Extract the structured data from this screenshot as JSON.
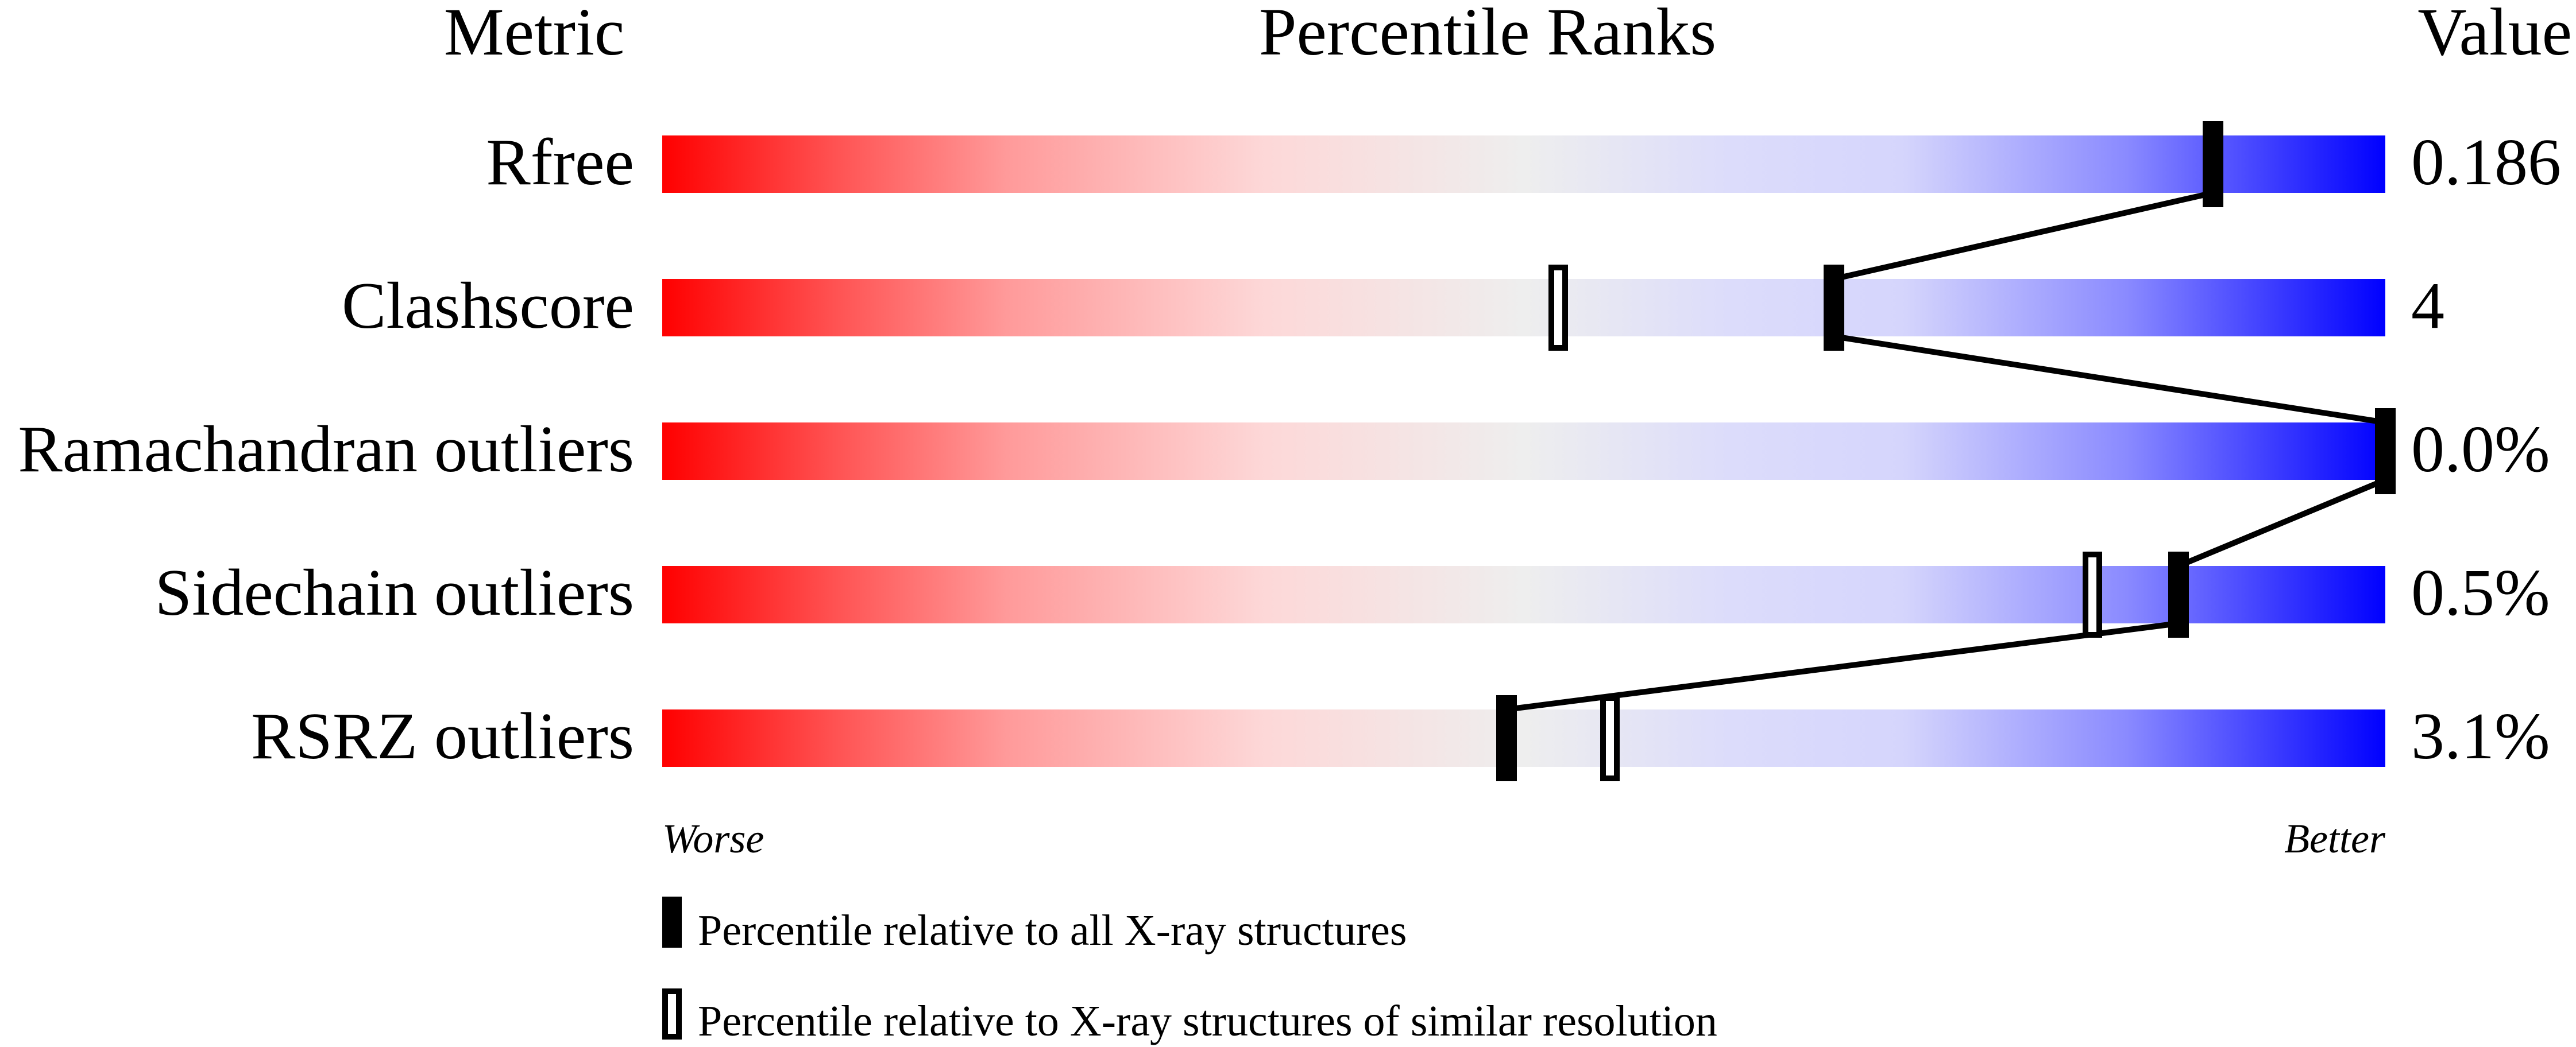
{
  "chart_data": {
    "type": "percentile-slider",
    "headers": {
      "metric": "Metric",
      "ranks": "Percentile Ranks",
      "value": "Value"
    },
    "axis": {
      "left_label": "Worse",
      "right_label": "Better",
      "range": [
        0,
        100
      ]
    },
    "metrics": [
      {
        "name": "Rfree",
        "value": "0.186",
        "percentile_all": 90,
        "percentile_similar": null
      },
      {
        "name": "Clashscore",
        "value": "4",
        "percentile_all": 68,
        "percentile_similar": 52
      },
      {
        "name": "Ramachandran outliers",
        "value": "0.0%",
        "percentile_all": 100,
        "percentile_similar": null
      },
      {
        "name": "Sidechain outliers",
        "value": "0.5%",
        "percentile_all": 88,
        "percentile_similar": 83
      },
      {
        "name": "RSRZ outliers",
        "value": "3.1%",
        "percentile_all": 49,
        "percentile_similar": 55
      }
    ],
    "legend": {
      "solid": "Percentile relative to all X-ray structures",
      "open": "Percentile relative to X-ray structures of similar resolution"
    },
    "colors": {
      "worse": "#ff0000",
      "middle": "#eeeeee",
      "better": "#0000ff",
      "marker": "#000000"
    }
  }
}
